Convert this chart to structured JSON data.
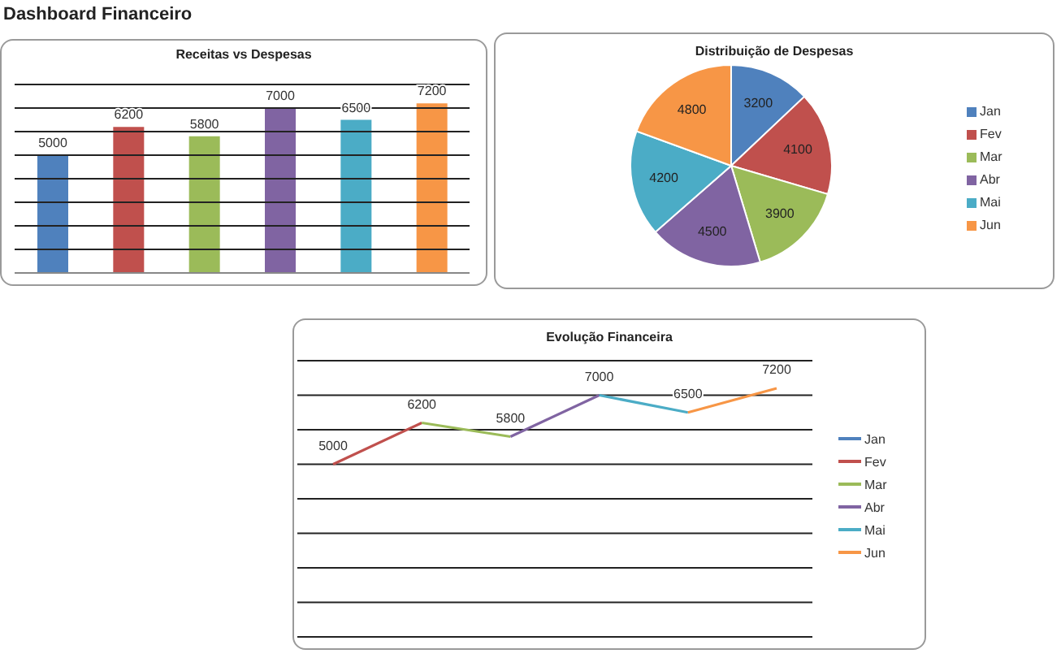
{
  "chart_data": [
    {
      "type": "other",
      "title": "Dashboard Financeiro"
    },
    {
      "type": "bar",
      "title": "Receitas vs Despesas",
      "categories": [
        null,
        null,
        null,
        null,
        null,
        null
      ],
      "values": [
        5000,
        6200,
        5800,
        7000,
        6500,
        7200
      ],
      "colors": [
        "#4f81bd",
        "#c0504d",
        "#9bbb59",
        "#8064a2",
        "#4bacc6",
        "#f79646"
      ],
      "ylim": [
        0,
        8000
      ],
      "yticks": [
        {
          "value": 0,
          "label": null
        },
        {
          "value": 1000,
          "label": null
        },
        {
          "value": 2000,
          "label": null
        },
        {
          "value": 3000,
          "label": null
        },
        {
          "value": 4000,
          "label": null
        },
        {
          "value": 5000,
          "label": null
        },
        {
          "value": 6000,
          "label": null
        },
        {
          "value": 7000,
          "label": null
        },
        {
          "value": 8000,
          "label": null
        }
      ],
      "grid": "y",
      "tick_labels": false,
      "data_labels": true
    },
    {
      "type": "pie",
      "title": "Distribuição de Despesas",
      "categories": [
        "Jan",
        "Fev",
        "Mar",
        "Abr",
        "Mai",
        "Jun"
      ],
      "values": [
        3200,
        4100,
        3900,
        4500,
        4200,
        4800
      ],
      "colors": [
        "#4f81bd",
        "#c0504d",
        "#9bbb59",
        "#8064a2",
        "#4bacc6",
        "#f79646"
      ],
      "data_labels": true,
      "legend": "right"
    },
    {
      "type": "line",
      "title": "Evolução Financeira",
      "categories": [
        null,
        null,
        null,
        null,
        null,
        null
      ],
      "series": [
        {
          "name": "Jan",
          "color": "#4f81bd",
          "values": [
            null,
            null,
            null,
            null,
            null,
            null
          ]
        },
        {
          "name": "Fev",
          "color": "#c0504d",
          "values": [
            5000,
            6200,
            null,
            null,
            null,
            null
          ],
          "value_labels": [
            "5000",
            "6200",
            null,
            null,
            null,
            null
          ]
        },
        {
          "name": "Mar",
          "color": "#9bbb59",
          "values": [
            null,
            6200,
            5800,
            null,
            null,
            null
          ],
          "value_labels": [
            null,
            null,
            "5800",
            null,
            null,
            null
          ]
        },
        {
          "name": "Abr",
          "color": "#8064a2",
          "values": [
            null,
            null,
            5800,
            7000,
            null,
            null
          ],
          "value_labels": [
            null,
            null,
            null,
            "7000",
            null,
            null
          ]
        },
        {
          "name": "Mai",
          "color": "#4bacc6",
          "values": [
            null,
            null,
            null,
            7000,
            6500,
            null
          ],
          "value_labels": [
            null,
            null,
            null,
            null,
            "6500",
            null
          ]
        },
        {
          "name": "Jun",
          "color": "#f79646",
          "values": [
            null,
            null,
            null,
            null,
            6500,
            7200
          ],
          "value_labels": [
            null,
            null,
            null,
            null,
            null,
            "7200"
          ]
        }
      ],
      "ylim": [
        0,
        8000
      ],
      "yticks": [
        {
          "value": 0,
          "label": null
        },
        {
          "value": 1000,
          "label": null
        },
        {
          "value": 2000,
          "label": null
        },
        {
          "value": 3000,
          "label": null
        },
        {
          "value": 4000,
          "label": null
        },
        {
          "value": 5000,
          "label": null
        },
        {
          "value": 6000,
          "label": null
        },
        {
          "value": 7000,
          "label": null
        },
        {
          "value": 8000,
          "label": null
        }
      ],
      "grid": "y",
      "tick_labels": false,
      "legend": "right",
      "marker": "none"
    }
  ]
}
